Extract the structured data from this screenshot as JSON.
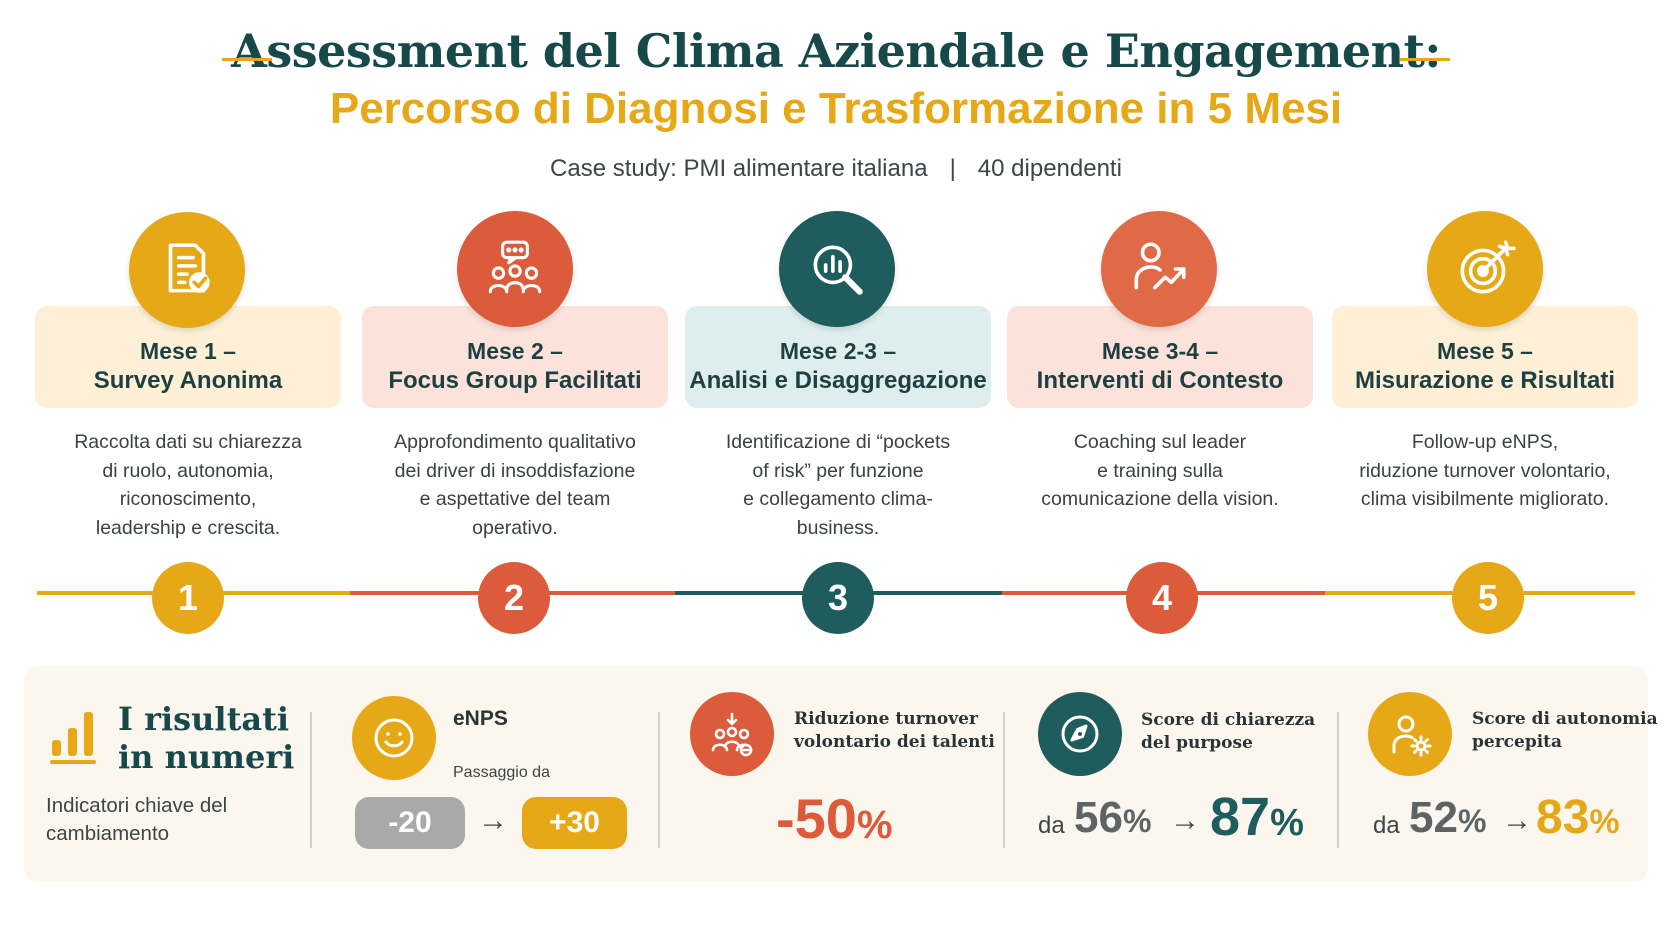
{
  "header": {
    "title": "Assessment del Clima Aziendale e Engagement:",
    "subtitle": "Percorso di Diagnosi e Trasformazione in 5 Mesi",
    "case_study": "Case study: PMI alimentare italiana",
    "separator": "|",
    "employees": "40 dipendenti"
  },
  "colors": {
    "gold": "#e6a817",
    "orange": "#db5b3a",
    "teal": "#1f5c5e",
    "coral": "#e06a45",
    "navy": "#17484a"
  },
  "steps": [
    {
      "number": "1",
      "icon": "checklist-document-icon",
      "label_line1": "Mese 1 –",
      "label_line2": "Survey Anonima",
      "desc": [
        "Raccolta dati su chiarezza",
        "di ruolo, autonomia,",
        "riconoscimento,",
        "leadership e crescita."
      ]
    },
    {
      "number": "2",
      "icon": "focus-group-icon",
      "label_line1": "Mese 2 –",
      "label_line2": "Focus Group Facilitati",
      "desc": [
        "Approfondimento qualitativo",
        "dei driver di insoddisfazione",
        "e aspettative del team",
        "operativo."
      ]
    },
    {
      "number": "3",
      "icon": "magnifier-chart-icon",
      "label_line1": "Mese 2-3 –",
      "label_line2": "Analisi e Disaggregazione",
      "desc": [
        "Identificazione di “pockets",
        "of risk” per funzione",
        "e collegamento clima-",
        "business."
      ]
    },
    {
      "number": "4",
      "icon": "person-growth-icon",
      "label_line1": "Mese 3-4 –",
      "label_line2": "Interventi di Contesto",
      "desc": [
        "Coaching sul leader",
        "e training sulla",
        "comunicazione della vision."
      ]
    },
    {
      "number": "5",
      "icon": "target-icon",
      "label_line1": "Mese 5 –",
      "label_line2": "Misurazione e Risultati",
      "desc": [
        "Follow-up eNPS,",
        "riduzione turnover volontario,",
        "clima visibilmente migliorato."
      ]
    }
  ],
  "results": {
    "title_line1": "I risultati",
    "title_line2": "in numeri",
    "subtitle_line1": "Indicatori chiave del",
    "subtitle_line2": "cambiamento",
    "enps": {
      "label": "eNPS",
      "passage": "Passaggio da",
      "from": "-20",
      "arrow": "→",
      "to": "+30"
    },
    "turnover": {
      "label_line1": "Riduzione turnover",
      "label_line2": "volontario dei talenti",
      "value": "-50",
      "unit": "%"
    },
    "purpose": {
      "label_line1": "Score di chiarezza",
      "label_line2": "del purpose",
      "prefix": "da",
      "from": "56",
      "to": "87",
      "unit": "%",
      "arrow": "→"
    },
    "autonomy": {
      "label_line1": "Score di autonomia",
      "label_line2": "percepita",
      "prefix": "da",
      "from": "52",
      "to": "83",
      "unit": "%",
      "arrow": "→"
    }
  }
}
